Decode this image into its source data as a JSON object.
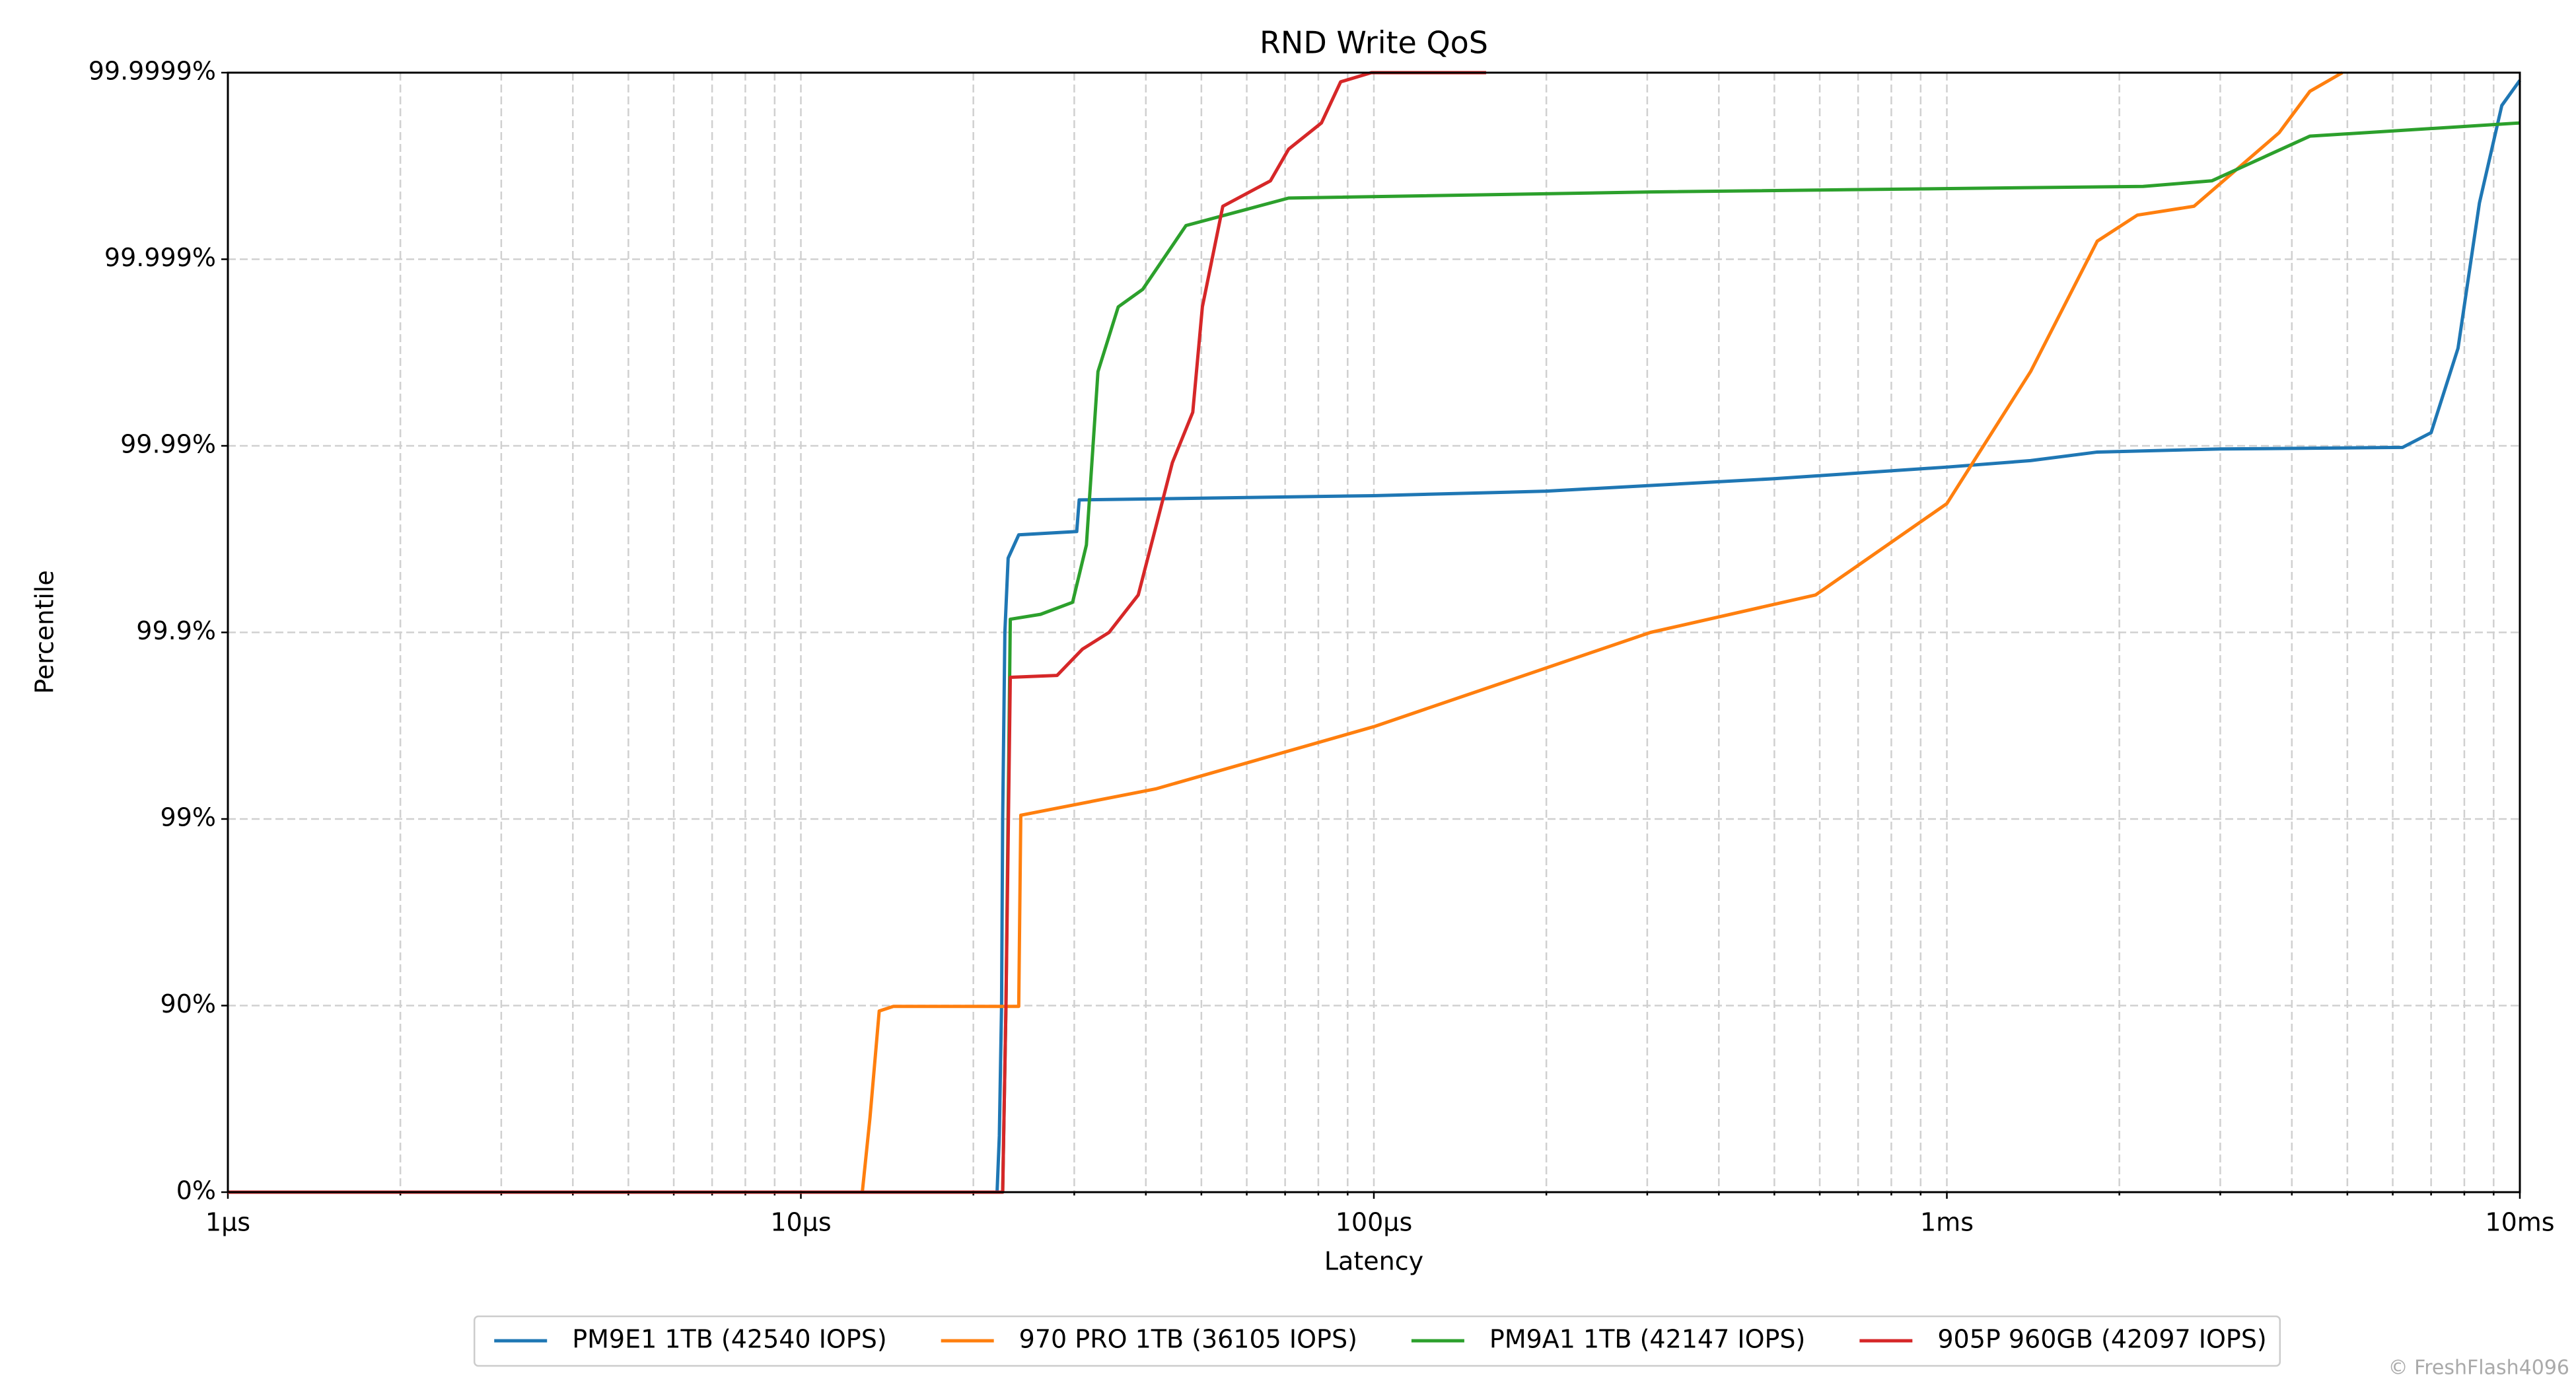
{
  "chart_data": {
    "type": "line",
    "title": "RND Write QoS",
    "xlabel": "Latency",
    "ylabel": "Percentile",
    "xscale": "log",
    "yscale": "nines",
    "grid": true,
    "xminor_grid": true,
    "legend": "bottom",
    "watermark": "© FreshFlash4096",
    "xlim": [
      1,
      10000
    ],
    "xticks": [
      {
        "value": 1,
        "label": "1µs"
      },
      {
        "value": 10,
        "label": "10µs"
      },
      {
        "value": 100,
        "label": "100µs"
      },
      {
        "value": 1000,
        "label": "1ms"
      },
      {
        "value": 10000,
        "label": "10ms"
      }
    ],
    "ylim": [
      0,
      99.9999
    ],
    "yticks": [
      {
        "value": 0,
        "label": "0%"
      },
      {
        "value": 90,
        "label": "90%"
      },
      {
        "value": 99,
        "label": "99%"
      },
      {
        "value": 99.9,
        "label": "99.9%"
      },
      {
        "value": 99.99,
        "label": "99.99%"
      },
      {
        "value": 99.999,
        "label": "99.999%"
      },
      {
        "value": 99.9999,
        "label": "99.9999%"
      }
    ],
    "series": [
      {
        "name": "PM9E1 1TB (42540 IOPS)",
        "color": "#1f77b4",
        "x": [
          1,
          22,
          22.2,
          22.4,
          22.5,
          22.7,
          23,
          24,
          30.3,
          30.6,
          100,
          200,
          500,
          1000,
          1400,
          1830,
          3000,
          6240,
          7000,
          7800,
          8500,
          9300,
          10000
        ],
        "values": [
          0,
          0,
          50,
          90,
          99,
          99.9,
          99.96,
          99.97,
          99.9712,
          99.9805,
          99.9815,
          99.9825,
          99.985,
          99.987,
          99.988,
          99.9892,
          99.9896,
          99.9898,
          99.9915,
          99.997,
          99.9995,
          99.99985,
          99.99989
        ]
      },
      {
        "name": "970 PRO 1TB (36105 IOPS)",
        "color": "#ff7f0e",
        "x": [
          1,
          12.8,
          13.2,
          13.7,
          14.5,
          24,
          24.2,
          41.6,
          100,
          304,
          590,
          1000,
          1400,
          1830,
          2150,
          2700,
          3800,
          4300,
          4900
        ],
        "values": [
          0,
          0,
          60,
          89.3,
          89.9,
          89.9,
          99.045,
          99.31,
          99.68,
          99.9,
          99.937,
          99.9796,
          99.996,
          99.9992,
          99.99942,
          99.99948,
          99.99979,
          99.999874,
          99.9999
        ]
      },
      {
        "name": "PM9A1 1TB (42147 IOPS)",
        "color": "#2ca02c",
        "x": [
          1,
          22.5,
          22.8,
          23.2,
          26.2,
          29.8,
          31.5,
          33,
          35.8,
          39.5,
          47,
          60,
          71,
          304,
          2200,
          2900,
          4300,
          10000
        ],
        "values": [
          0,
          0,
          90,
          99.915,
          99.92,
          99.931,
          99.966,
          99.996,
          99.9982,
          99.99855,
          99.99934,
          99.99946,
          99.99953,
          99.999564,
          99.999593,
          99.99962,
          99.999781,
          99.999814
        ]
      },
      {
        "name": "905P 960GB (42097 IOPS)",
        "color": "#d62728",
        "x": [
          1,
          22.5,
          22.8,
          23.2,
          28,
          31,
          34.5,
          38.8,
          41.6,
          44.5,
          48.3,
          50.2,
          54.5,
          66,
          71,
          81,
          87.5,
          99,
          157
        ],
        "values": [
          0,
          0,
          90,
          99.826,
          99.83,
          99.877,
          99.9,
          99.937,
          99.9725,
          99.9877,
          99.99339,
          99.9982,
          99.99948,
          99.99962,
          99.999743,
          99.999814,
          99.999888,
          99.9999,
          99.9999
        ]
      }
    ]
  }
}
